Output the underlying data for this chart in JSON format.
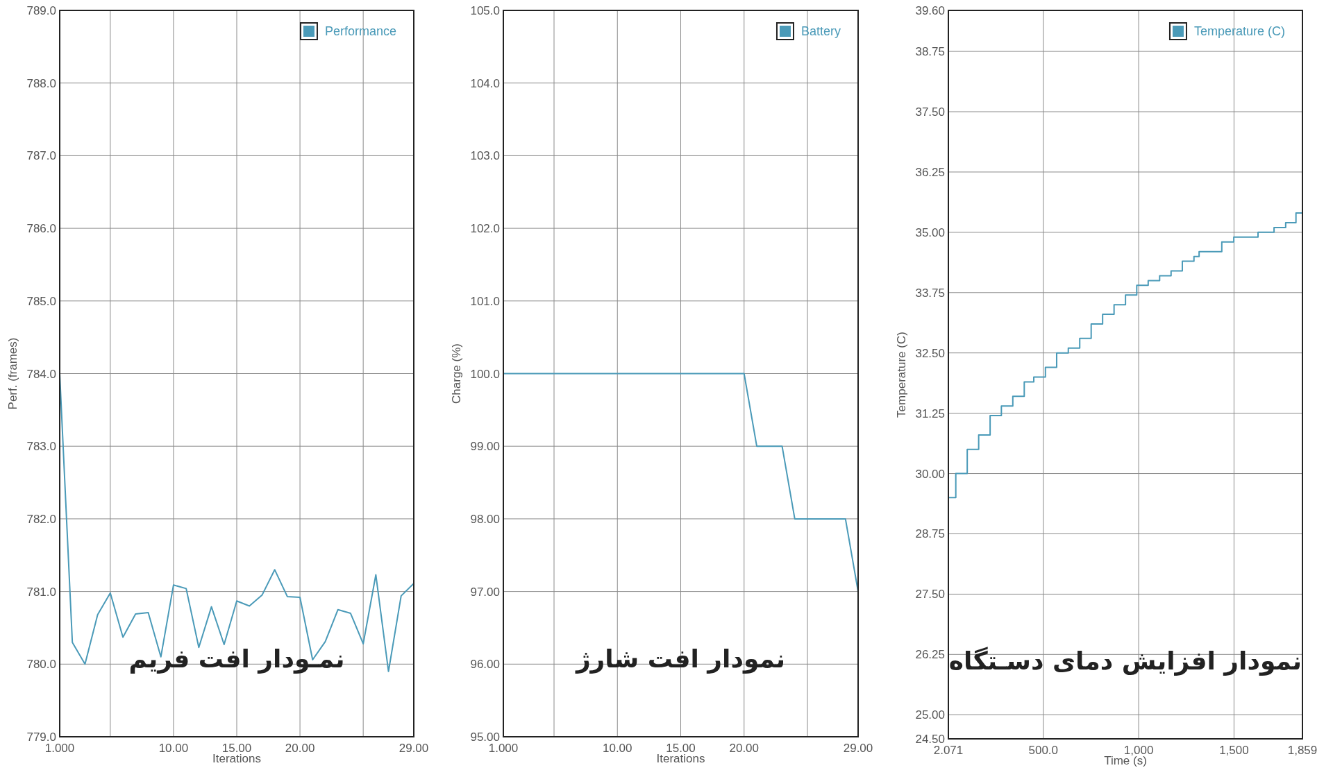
{
  "chart_data": [
    {
      "type": "line",
      "xlabel": "Iterations",
      "ylabel": "Perf. (frames)",
      "xlim": [
        1,
        29
      ],
      "ylim": [
        779,
        789
      ],
      "xticks": [
        {
          "value": 1,
          "label": "1.000"
        },
        {
          "value": 5,
          "label": null
        },
        {
          "value": 10,
          "label": "10.00"
        },
        {
          "value": 15,
          "label": "15.00"
        },
        {
          "value": 20,
          "label": "20.00"
        },
        {
          "value": 25,
          "label": null
        },
        {
          "value": 29,
          "label": "29.00"
        }
      ],
      "yticks": [
        {
          "value": 779,
          "label": "779.0"
        },
        {
          "value": 780,
          "label": "780.0"
        },
        {
          "value": 781,
          "label": "781.0"
        },
        {
          "value": 782,
          "label": "782.0"
        },
        {
          "value": 783,
          "label": "783.0"
        },
        {
          "value": 784,
          "label": "784.0"
        },
        {
          "value": 785,
          "label": "785.0"
        },
        {
          "value": 786,
          "label": "786.0"
        },
        {
          "value": 787,
          "label": "787.0"
        },
        {
          "value": 788,
          "label": "788.0"
        },
        {
          "value": 789,
          "label": "789.0"
        }
      ],
      "x": [
        1,
        2,
        3,
        4,
        5,
        6,
        7,
        8,
        9,
        10,
        11,
        12,
        13,
        14,
        15,
        16,
        17,
        18,
        19,
        20,
        21,
        22,
        23,
        24,
        25,
        26,
        27,
        28,
        29
      ],
      "series": [
        {
          "name": "Performance",
          "color": "#4a9ab8",
          "values": [
            784.0,
            780.3,
            780.0,
            780.68,
            780.98,
            780.37,
            780.69,
            780.71,
            780.1,
            781.09,
            781.04,
            780.23,
            780.79,
            780.27,
            780.87,
            780.8,
            780.95,
            781.3,
            780.93,
            780.92,
            780.06,
            780.31,
            780.75,
            780.7,
            780.28,
            781.23,
            779.9,
            780.94,
            781.11
          ]
        }
      ],
      "grid": true,
      "legend": "top right",
      "annotations": [
        "نمـودار افت فریم"
      ]
    },
    {
      "type": "line",
      "xlabel": "Iterations",
      "ylabel": "Charge (%)",
      "xlim": [
        1,
        29
      ],
      "ylim": [
        95,
        105
      ],
      "xticks": [
        {
          "value": 1,
          "label": "1.000"
        },
        {
          "value": 5,
          "label": null
        },
        {
          "value": 10,
          "label": "10.00"
        },
        {
          "value": 15,
          "label": "15.00"
        },
        {
          "value": 20,
          "label": "20.00"
        },
        {
          "value": 25,
          "label": null
        },
        {
          "value": 29,
          "label": "29.00"
        }
      ],
      "yticks": [
        {
          "value": 95,
          "label": "95.00"
        },
        {
          "value": 96,
          "label": "96.00"
        },
        {
          "value": 97,
          "label": "97.00"
        },
        {
          "value": 98,
          "label": "98.00"
        },
        {
          "value": 99,
          "label": "99.00"
        },
        {
          "value": 100,
          "label": "100.0"
        },
        {
          "value": 101,
          "label": "101.0"
        },
        {
          "value": 102,
          "label": "102.0"
        },
        {
          "value": 103,
          "label": "103.0"
        },
        {
          "value": 104,
          "label": "104.0"
        },
        {
          "value": 105,
          "label": "105.0"
        }
      ],
      "x": [
        1,
        2,
        3,
        4,
        5,
        6,
        7,
        8,
        9,
        10,
        11,
        12,
        13,
        14,
        15,
        16,
        17,
        18,
        19,
        20,
        21,
        22,
        23,
        24,
        25,
        26,
        27,
        28,
        29
      ],
      "series": [
        {
          "name": "Battery",
          "color": "#4a9ab8",
          "values": [
            100,
            100,
            100,
            100,
            100,
            100,
            100,
            100,
            100,
            100,
            100,
            100,
            100,
            100,
            100,
            100,
            100,
            100,
            100,
            100,
            99,
            99,
            99,
            98,
            98,
            98,
            98,
            98,
            97
          ]
        }
      ],
      "grid": true,
      "legend": "top right",
      "annotations": [
        "نمودار افت شارژ"
      ]
    },
    {
      "type": "step",
      "xlabel": "Time (s)",
      "ylabel": "Temperature (C)",
      "xlim": [
        2.071,
        1859
      ],
      "ylim": [
        24.5,
        39.6
      ],
      "xticks": [
        {
          "value": 2.071,
          "label": "2.071"
        },
        {
          "value": 500,
          "label": "500.0"
        },
        {
          "value": 1000,
          "label": "1,000"
        },
        {
          "value": 1500,
          "label": "1,500"
        },
        {
          "value": 1859,
          "label": "1,859"
        }
      ],
      "yticks": [
        {
          "value": 24.5,
          "label": "24.50"
        },
        {
          "value": 25,
          "label": "25.00"
        },
        {
          "value": 26.25,
          "label": "26.25"
        },
        {
          "value": 27.5,
          "label": "27.50"
        },
        {
          "value": 28.75,
          "label": "28.75"
        },
        {
          "value": 30,
          "label": "30.00"
        },
        {
          "value": 31.25,
          "label": "31.25"
        },
        {
          "value": 32.5,
          "label": "32.50"
        },
        {
          "value": 33.75,
          "label": "33.75"
        },
        {
          "value": 35,
          "label": "35.00"
        },
        {
          "value": 36.25,
          "label": "36.25"
        },
        {
          "value": 37.5,
          "label": "37.50"
        },
        {
          "value": 38.75,
          "label": "38.75"
        },
        {
          "value": 39.6,
          "label": "39.60"
        }
      ],
      "x": [
        2.071,
        41,
        101,
        161,
        221,
        280,
        340,
        400,
        450,
        511,
        570,
        631,
        691,
        751,
        811,
        871,
        931,
        990,
        1050,
        1110,
        1170,
        1229,
        1290,
        1317,
        1436,
        1499,
        1626,
        1710,
        1771,
        1825,
        1859
      ],
      "series": [
        {
          "name": "Temperature (C)",
          "color": "#4a9ab8",
          "values": [
            29.5,
            30.0,
            30.5,
            30.8,
            31.2,
            31.4,
            31.6,
            31.9,
            32.0,
            32.2,
            32.5,
            32.6,
            32.8,
            33.1,
            33.3,
            33.5,
            33.7,
            33.9,
            34.0,
            34.1,
            34.2,
            34.4,
            34.5,
            34.6,
            34.8,
            34.9,
            35.0,
            35.1,
            35.2,
            35.4,
            35.4
          ]
        }
      ],
      "grid": true,
      "legend": "top right",
      "annotations": [
        "نمودار افزایش دمای دسـتگاه"
      ]
    }
  ]
}
